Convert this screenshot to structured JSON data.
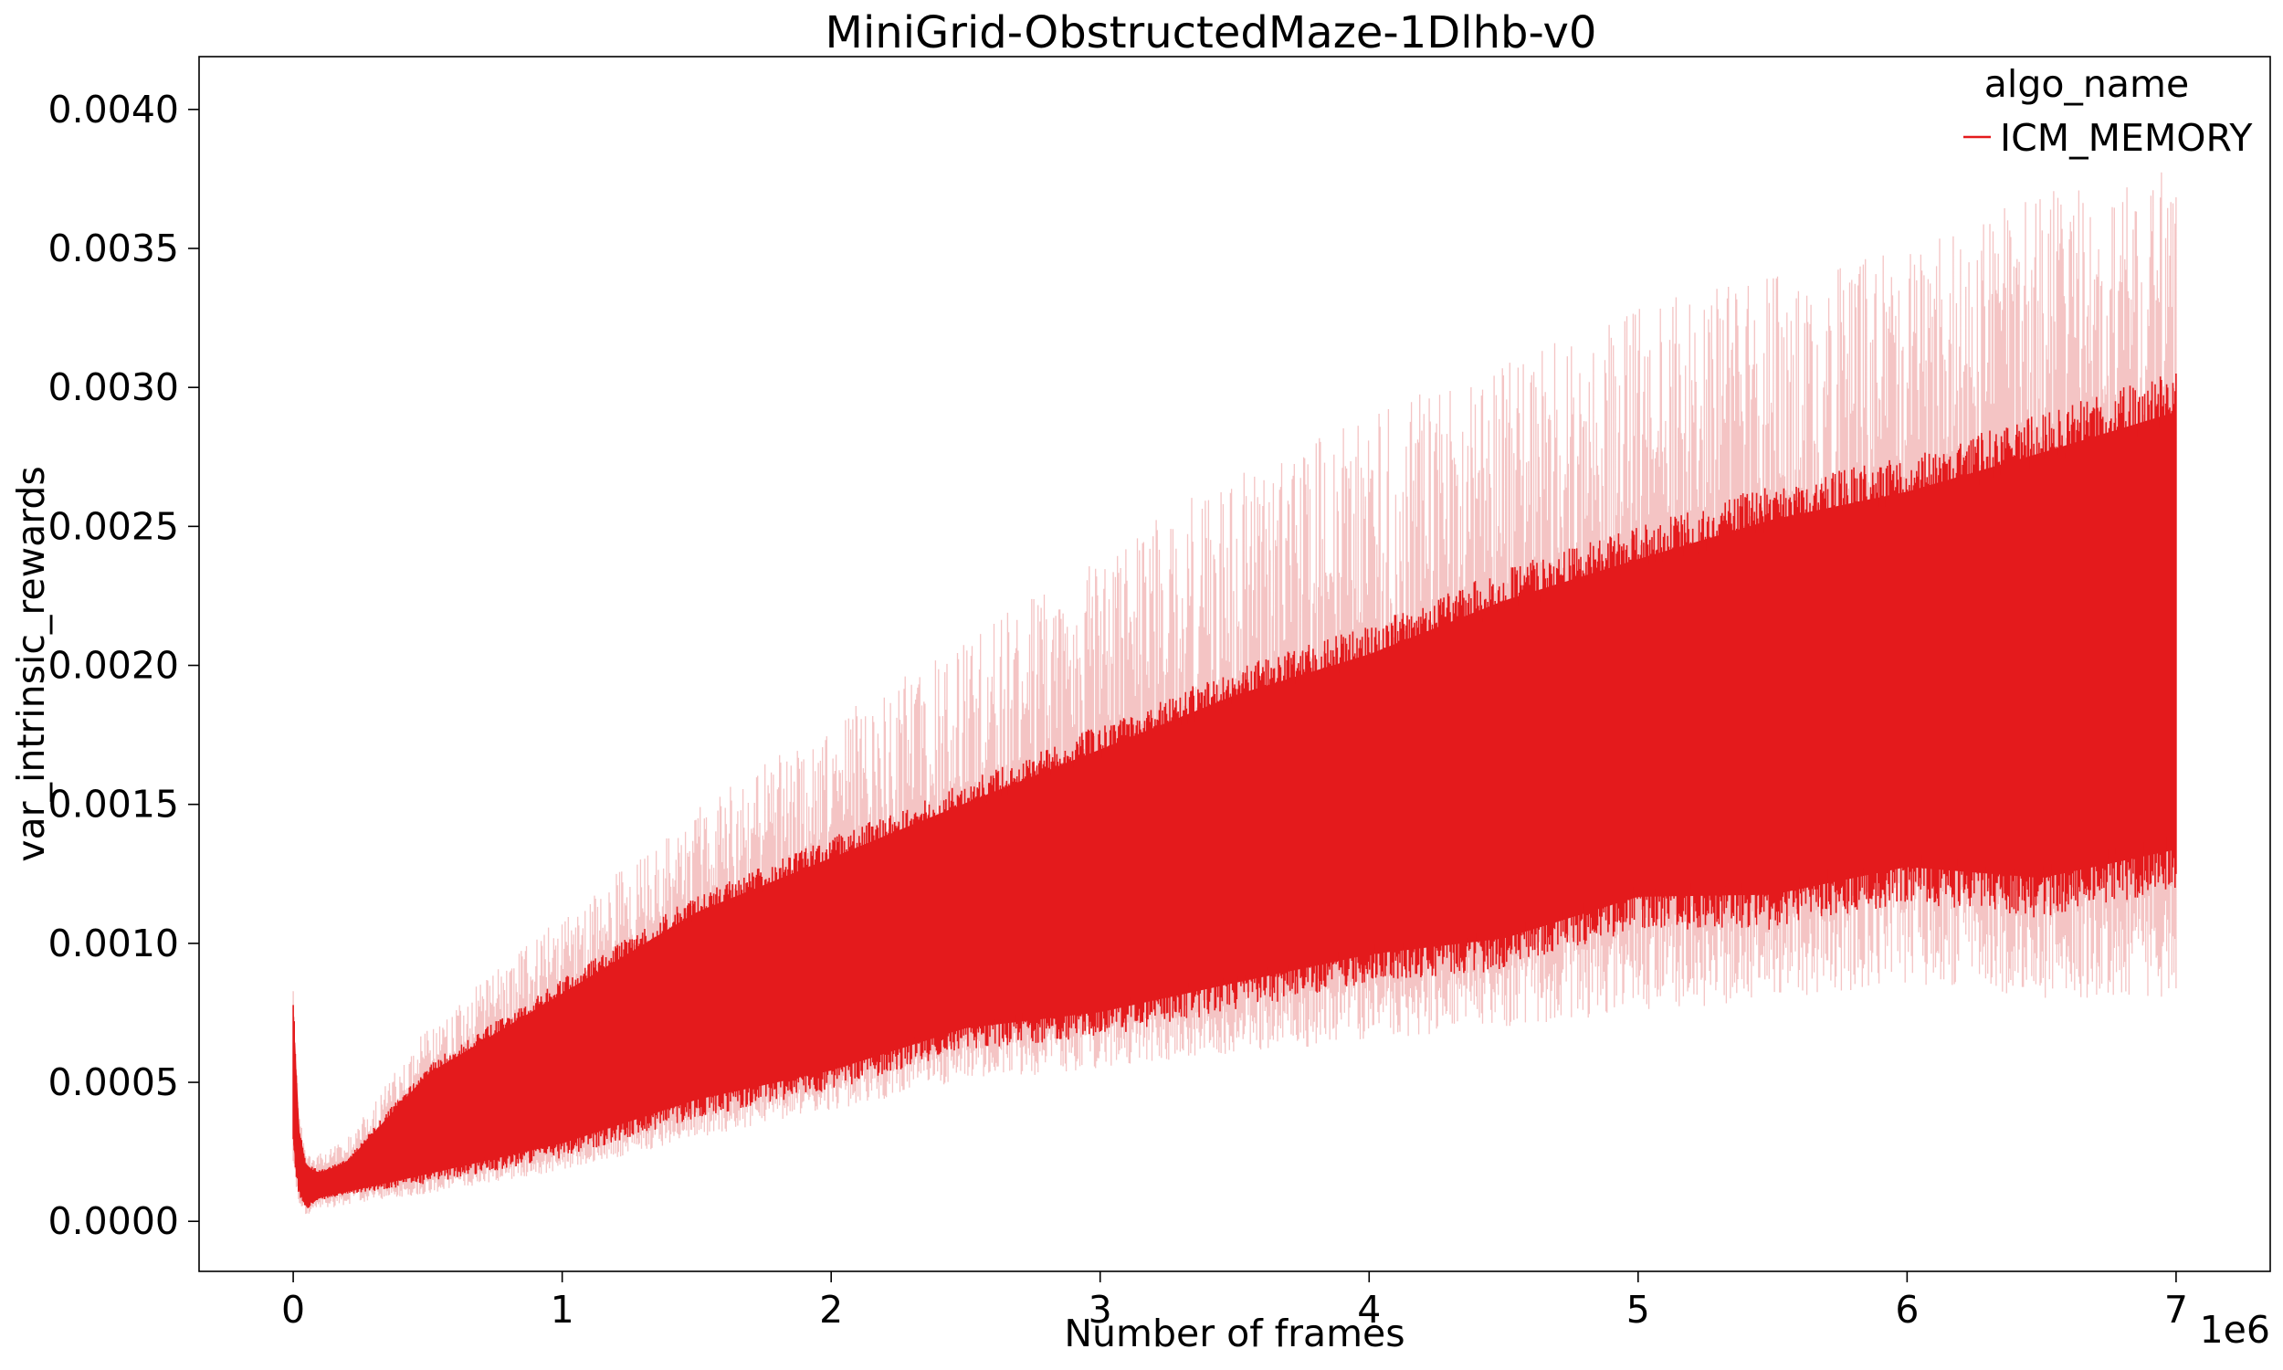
{
  "chart_data": {
    "type": "line",
    "title": "MiniGrid-ObstructedMaze-1Dlhb-v0",
    "xlabel": "Number of frames",
    "ylabel": "var_intrinsic_rewards",
    "x_offset_text": "1e6",
    "xlim": [
      -0.35,
      7.35
    ],
    "ylim": [
      -0.00018,
      0.00419
    ],
    "x_ticks": [
      0,
      1,
      2,
      3,
      4,
      5,
      6,
      7
    ],
    "x_tick_labels": [
      "0",
      "1",
      "2",
      "3",
      "4",
      "5",
      "6",
      "7"
    ],
    "y_ticks": [
      0.0,
      0.0005,
      0.001,
      0.0015,
      0.002,
      0.0025,
      0.003,
      0.0035,
      0.004
    ],
    "y_tick_labels": [
      "0.0000",
      "0.0005",
      "0.0010",
      "0.0015",
      "0.0020",
      "0.0025",
      "0.0030",
      "0.0035",
      "0.0040"
    ],
    "grid": false,
    "legend": {
      "title": "algo_name",
      "placement": "top-right",
      "entries": [
        "ICM_MEMORY"
      ]
    },
    "series": [
      {
        "name": "ICM_MEMORY",
        "color": "#e41a1c",
        "band_color": "#f4c4c4",
        "envelope": {
          "x": [
            0.0,
            0.02,
            0.05,
            0.1,
            0.2,
            0.5,
            1.0,
            1.5,
            2.0,
            2.5,
            3.0,
            3.5,
            4.0,
            4.5,
            5.0,
            5.5,
            6.0,
            6.5,
            7.0
          ],
          "upper": [
            0.0008,
            0.00035,
            0.0002,
            0.00018,
            0.00022,
            0.00055,
            0.00085,
            0.00115,
            0.00135,
            0.00155,
            0.00175,
            0.00195,
            0.0021,
            0.0023,
            0.00245,
            0.0026,
            0.0027,
            0.00285,
            0.003
          ],
          "lower": [
            0.00025,
            0.0001,
            5e-05,
            8e-05,
            0.0001,
            0.00015,
            0.00025,
            0.0004,
            0.0005,
            0.00065,
            0.0007,
            0.0008,
            0.0009,
            0.00095,
            0.0011,
            0.0011,
            0.0012,
            0.00115,
            0.00125
          ],
          "band_upper": [
            0.0009,
            0.0004,
            0.00025,
            0.00025,
            0.0003,
            0.0007,
            0.0011,
            0.0015,
            0.0018,
            0.0021,
            0.0024,
            0.0027,
            0.0029,
            0.0031,
            0.0033,
            0.0034,
            0.0035,
            0.0037,
            0.0038
          ],
          "band_lower": [
            0.0002,
            5e-05,
            2e-05,
            4e-05,
            6e-05,
            0.0001,
            0.00018,
            0.0003,
            0.0004,
            0.0005,
            0.00055,
            0.0006,
            0.00065,
            0.0007,
            0.00075,
            0.0008,
            0.00085,
            0.0008,
            0.0008
          ]
        }
      }
    ]
  }
}
